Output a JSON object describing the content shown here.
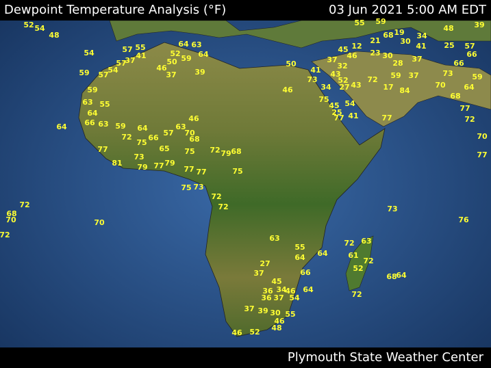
{
  "header": {
    "title": "Dewpoint Temperature Analysis (°F)",
    "timestamp": "03 Jun 2021 5:00 AM EDT"
  },
  "footer": "Plymouth State Weather Center",
  "stations": [
    52,
    54,
    48,
    54,
    59,
    57,
    54,
    59,
    55,
    63,
    64,
    64,
    66,
    63,
    59,
    72,
    77,
    81,
    73,
    79,
    77,
    79,
    75,
    66,
    64,
    57,
    63,
    70,
    68,
    46,
    75,
    65,
    72,
    79,
    68,
    75,
    77,
    77,
    75,
    73,
    72,
    72,
    70,
    72,
    68,
    70,
    72,
    63,
    55,
    64,
    64,
    27,
    37,
    45,
    36,
    34,
    46,
    37,
    54,
    36,
    64,
    66,
    37,
    39,
    30,
    55,
    46,
    48,
    46,
    52,
    72,
    63,
    61,
    72,
    52,
    72,
    64,
    68,
    73,
    76,
    39,
    46,
    37,
    50,
    52,
    59,
    64,
    63,
    64,
    41,
    37,
    57,
    55,
    57,
    46,
    73,
    34,
    27,
    43,
    52,
    43,
    75,
    45,
    54,
    25,
    77,
    41,
    77,
    72,
    17,
    84,
    37,
    59,
    73,
    70,
    64,
    68,
    77,
    72,
    70,
    77,
    59,
    66,
    21,
    23,
    30,
    28,
    37,
    41,
    30,
    34,
    25,
    48,
    57,
    66,
    12,
    37,
    32,
    41,
    50,
    46,
    45,
    39,
    55,
    59,
    68,
    19
  ]
}
